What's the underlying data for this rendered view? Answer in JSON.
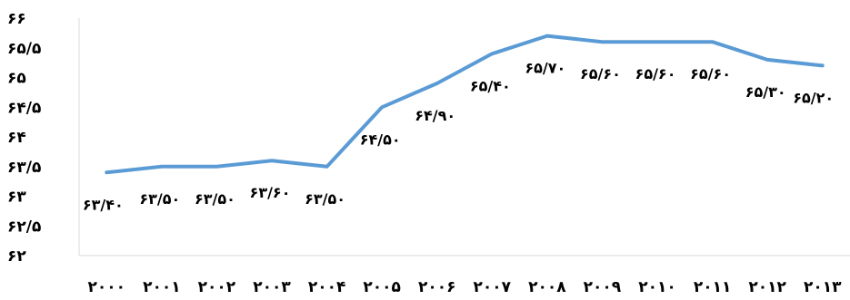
{
  "chart_data": {
    "type": "line",
    "title": "",
    "xlabel": "",
    "ylabel": "",
    "ylim": [
      62,
      66
    ],
    "yticks": [
      62,
      62.5,
      63,
      63.5,
      64,
      64.5,
      65,
      65.5,
      66
    ],
    "ytick_labels": [
      "۶۲",
      "۶۲/۵",
      "۶۳",
      "۶۳/۵",
      "۶۴",
      "۶۴/۵",
      "۶۵",
      "۶۵/۵",
      "۶۶"
    ],
    "x": [
      2000,
      2001,
      2002,
      2003,
      2004,
      2005,
      2006,
      2007,
      2008,
      2009,
      2010,
      2011,
      2012,
      2013
    ],
    "xtick_labels": [
      "۲۰۰۰",
      "۲۰۰۱",
      "۲۰۰۲",
      "۲۰۰۳",
      "۲۰۰۴",
      "۲۰۰۵",
      "۲۰۰۶",
      "۲۰۰۷",
      "۲۰۰۸",
      "۲۰۰۹",
      "۲۰۱۰",
      "۲۰۱۱",
      "۲۰۱۲",
      "۲۰۱۳"
    ],
    "series": [
      {
        "color": "#5b9bd5",
        "values": [
          63.4,
          63.5,
          63.5,
          63.6,
          63.5,
          64.5,
          64.9,
          65.4,
          65.7,
          65.6,
          65.6,
          65.6,
          65.3,
          65.2
        ],
        "data_labels": [
          "۶۳/۴۰",
          "۶۳/۵۰",
          "۶۳/۵۰",
          "۶۳/۶۰",
          "۶۳/۵۰",
          "۶۴/۵۰",
          "۶۴/۹۰",
          "۶۵/۴۰",
          "۶۵/۷۰",
          "۶۵/۶۰",
          "۶۵/۶۰",
          "۶۵/۶۰",
          "۶۵/۳۰",
          "۶۵/۲۰"
        ]
      }
    ],
    "grid": false,
    "legend": "none"
  }
}
